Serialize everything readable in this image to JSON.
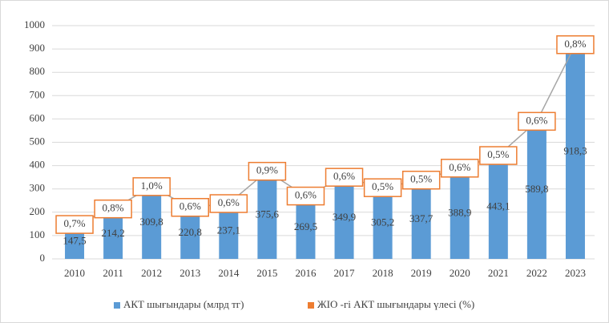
{
  "chart_data": {
    "type": "bar",
    "categories": [
      "2010",
      "2011",
      "2012",
      "2013",
      "2014",
      "2015",
      "2016",
      "2017",
      "2018",
      "2019",
      "2020",
      "2021",
      "2022",
      "2023"
    ],
    "series": [
      {
        "name": "АКТ шығындары (млрд тг)",
        "color": "#5b9bd5",
        "values": [
          147.5,
          214.2,
          309.8,
          220.8,
          237.1,
          375.6,
          269.5,
          349.9,
          305.2,
          337.7,
          388.9,
          443.1,
          589.8,
          918.3
        ],
        "value_labels": [
          "147,5",
          "214,2",
          "309,8",
          "220,8",
          "237,1",
          "375,6",
          "269,5",
          "349,9",
          "305,2",
          "337,7",
          "388,9",
          "443,1",
          "589,8",
          "918,3"
        ]
      },
      {
        "name": "ЖІО -гі АКТ шығындары үлесі (%)",
        "color": "#ed7d31",
        "line_color": "#a5a5a5",
        "values": [
          0.7,
          0.8,
          1.0,
          0.6,
          0.6,
          0.9,
          0.6,
          0.6,
          0.5,
          0.5,
          0.6,
          0.5,
          0.6,
          0.8
        ],
        "value_labels": [
          "0,7%",
          "0,8%",
          "1,0%",
          "0,6%",
          "0,6%",
          "0,9%",
          "0,6%",
          "0,6%",
          "0,5%",
          "0,5%",
          "0,6%",
          "0,5%",
          "0,6%",
          "0,8%"
        ]
      }
    ],
    "ylim": [
      0,
      1000
    ],
    "yticks": [
      0,
      100,
      200,
      300,
      400,
      500,
      600,
      700,
      800,
      900,
      1000
    ],
    "grid": true,
    "legend": "bottom"
  }
}
